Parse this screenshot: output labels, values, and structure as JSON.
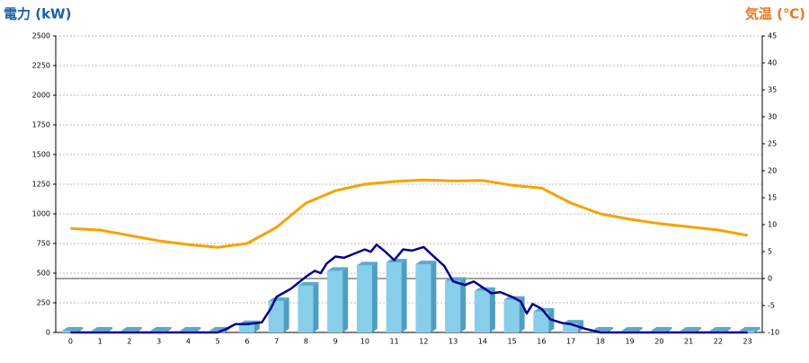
{
  "chart_data": {
    "type": "combo",
    "ylabel": "電力 (kW)",
    "y2label": "気温 (℃)",
    "categories": [
      0,
      1,
      2,
      3,
      4,
      5,
      6,
      7,
      8,
      9,
      10,
      11,
      12,
      13,
      14,
      15,
      16,
      17,
      18,
      19,
      20,
      21,
      22,
      23
    ],
    "ylim": [
      0,
      2500
    ],
    "yticks": [
      0,
      250,
      500,
      750,
      1000,
      1250,
      1500,
      1750,
      2000,
      2250,
      2500
    ],
    "y2lim": [
      -10,
      45
    ],
    "y2ticks": [
      -10,
      -5,
      0,
      5,
      10,
      15,
      20,
      25,
      30,
      35,
      40,
      45
    ],
    "grid": true,
    "series": [
      {
        "type": "bar",
        "color": "#87ceeb",
        "values": [
          0,
          0,
          0,
          0,
          0,
          0,
          55,
          250,
          380,
          505,
          550,
          575,
          560,
          420,
          335,
          260,
          160,
          60,
          0,
          0,
          0,
          0,
          0,
          0
        ]
      },
      {
        "type": "line",
        "color": "#00008b",
        "x": [
          0,
          5,
          5.3,
          5.6,
          6,
          6.5,
          6.8,
          7,
          7.5,
          8,
          8.3,
          8.5,
          8.7,
          9,
          9.3,
          9.6,
          10,
          10.2,
          10.4,
          10.7,
          11,
          11.3,
          11.6,
          12,
          12.3,
          12.7,
          13,
          13.4,
          13.7,
          14,
          14.3,
          14.6,
          15,
          15.3,
          15.5,
          15.7,
          16,
          16.3,
          16.7,
          17,
          17.5,
          18,
          23
        ],
        "values": [
          0,
          0,
          30,
          70,
          70,
          85,
          200,
          300,
          370,
          470,
          520,
          500,
          580,
          640,
          630,
          660,
          700,
          680,
          740,
          680,
          610,
          700,
          690,
          720,
          650,
          560,
          430,
          400,
          430,
          380,
          330,
          340,
          300,
          260,
          160,
          240,
          200,
          110,
          80,
          70,
          30,
          0,
          0
        ]
      },
      {
        "type": "line",
        "axis": "y2",
        "color": "#f5a300",
        "values": [
          9.3,
          9,
          8,
          7,
          6.3,
          5.8,
          6.5,
          9.5,
          14,
          16.3,
          17.5,
          18,
          18.3,
          18.1,
          18.2,
          17.3,
          16.8,
          14,
          12,
          11,
          10.2,
          9.6,
          9,
          8
        ]
      }
    ]
  }
}
